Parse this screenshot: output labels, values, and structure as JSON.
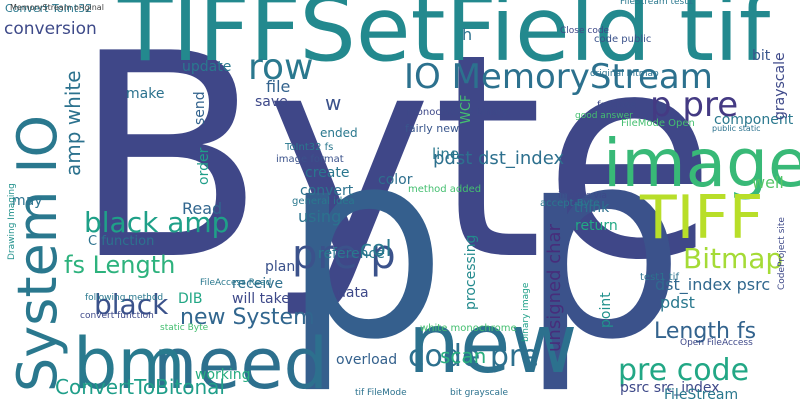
{
  "words": [
    "Byte",
    "p",
    "p",
    "TIFFSetField tif",
    "new",
    "need",
    "bm",
    "System IO",
    "image",
    "TIFF",
    "IO MemoryStream",
    "p pre",
    "row",
    "pre p",
    "code pre",
    "pre code",
    "Bitmap",
    "black amp",
    "black",
    "new System",
    "ConvertToBitonal",
    "fs Length",
    "Length fs",
    "amp white",
    "conversion",
    "Convert ToInt32",
    "pdst dst_index",
    "unsigned char",
    "col",
    "dst_index psrc",
    "pdst",
    "psrc src_index",
    "FileStream",
    "scan",
    "overload",
    "working",
    "Read",
    "using",
    "reference",
    "data",
    "DIB",
    "plan",
    "receive",
    "will take",
    "processing",
    "point",
    "return",
    "think",
    "well",
    "color",
    "line",
    "convert",
    "create",
    "ended",
    "fairly new",
    "save",
    "file",
    "w",
    "update",
    "make",
    "send",
    "order",
    "may",
    "h",
    "component",
    "grayscale",
    "bit",
    "code public",
    "fs Close",
    "FileMode Open",
    "monochrome binary",
    "WCF",
    "ToInt32 fs",
    "image format",
    "general idea",
    "method added",
    "images via",
    "C function",
    "Close code",
    "accept Byte",
    "test1 tif",
    "Open FileAccess",
    "binary image",
    "white monochrome",
    "FileAccess Read",
    "following method",
    "convert function",
    "static Byte",
    "tif FileMode",
    "bit grayscale",
    "original Bitmap",
    "good answer",
    "FileStream test1",
    "Drawing Imaging",
    "CodeProject site",
    "public static",
    "MemoryStream original"
  ]
}
